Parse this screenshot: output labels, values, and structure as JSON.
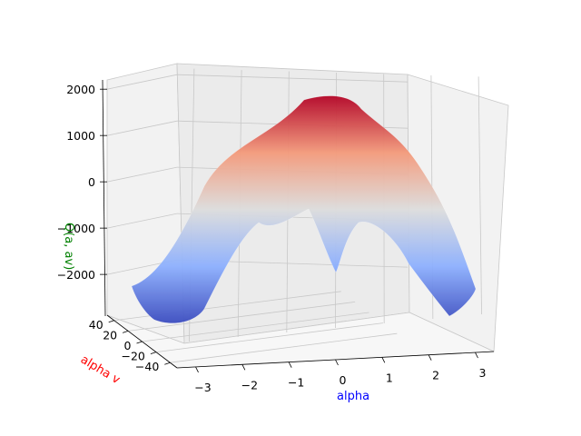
{
  "chart_data": {
    "type": "surface",
    "title": "",
    "xlabel": "alpha",
    "ylabel": "alpha v",
    "zlabel": "Q(a, av)",
    "xlim": [
      -3.4,
      3.4
    ],
    "ylim": [
      -50,
      50
    ],
    "zlim": [
      -2900,
      2200
    ],
    "x_ticks": [
      -3,
      -2,
      -1,
      0,
      1,
      2,
      3
    ],
    "y_ticks": [
      -40,
      -20,
      0,
      20,
      40
    ],
    "z_ticks": [
      -2000,
      -1000,
      0,
      1000,
      2000
    ],
    "x_tick_labels": [
      "−3",
      "−2",
      "−1",
      "0",
      "1",
      "2",
      "3"
    ],
    "y_tick_labels": [
      "−40",
      "−20",
      "0",
      "20",
      "40"
    ],
    "z_tick_labels": [
      "−2000",
      "−1000",
      "0",
      "1000",
      "2000"
    ],
    "colormap": "coolwarm",
    "grid": true,
    "surface_profile": {
      "description_alpha": [
        -3.14,
        -2.36,
        -1.57,
        -0.79,
        0.0,
        0.79,
        1.57,
        2.36,
        3.14
      ],
      "Q_at_av_0": [
        -2800,
        -2300,
        -200,
        400,
        -1900,
        400,
        -200,
        -2300,
        -2600
      ],
      "Q_at_av_40": [
        -2500,
        -1200,
        1200,
        2000,
        1500,
        1900,
        1300,
        -1000,
        -2300
      ]
    },
    "axis_label_colors": {
      "xlabel": "#0000ff",
      "ylabel": "#ff0000",
      "zlabel": "#008000"
    }
  }
}
